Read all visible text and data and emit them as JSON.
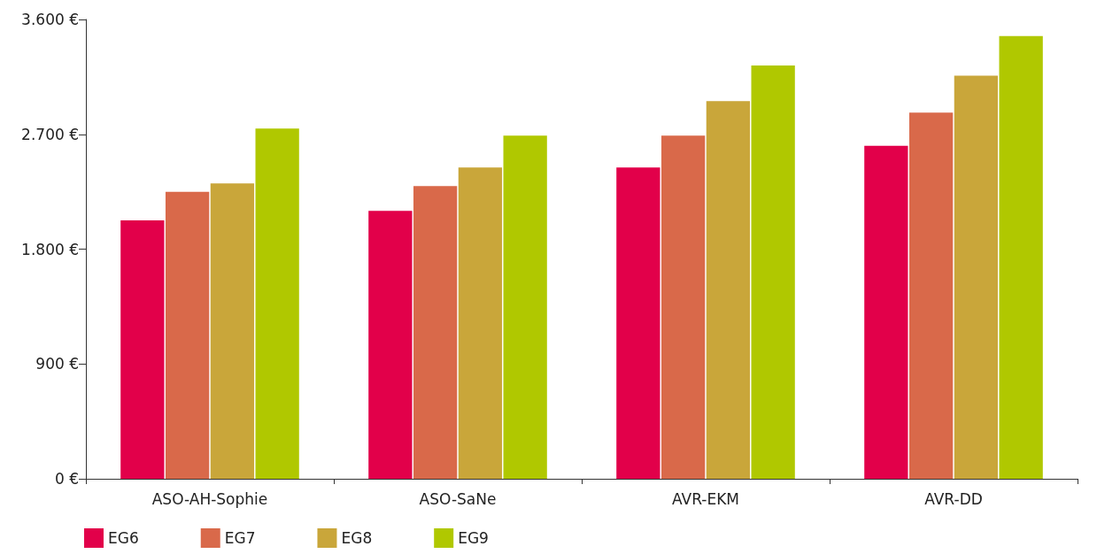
{
  "chart_data": {
    "type": "bar",
    "categories": [
      "ASO-AH-Sophie",
      "ASO-SaNe",
      "AVR-EKM",
      "AVR-DD"
    ],
    "series": [
      {
        "name": "EG6",
        "color": "#e2004a",
        "values": [
          2025,
          2100,
          2440,
          2610
        ]
      },
      {
        "name": "EG7",
        "color": "#d9694a",
        "values": [
          2250,
          2295,
          2690,
          2870
        ]
      },
      {
        "name": "EG8",
        "color": "#c9a63a",
        "values": [
          2315,
          2440,
          2960,
          3160
        ]
      },
      {
        "name": "EG9",
        "color": "#b0c800",
        "values": [
          2745,
          2690,
          3240,
          3470
        ]
      }
    ],
    "ylim": [
      0,
      3600
    ],
    "yticks": [
      {
        "value": 0,
        "label": "0 €"
      },
      {
        "value": 900,
        "label": "900 €"
      },
      {
        "value": 1800,
        "label": "1.800 €"
      },
      {
        "value": 2700,
        "label": "2.700 €"
      },
      {
        "value": 3600,
        "label": "3.600 €"
      }
    ],
    "grid": false,
    "legend": "bottom left"
  }
}
